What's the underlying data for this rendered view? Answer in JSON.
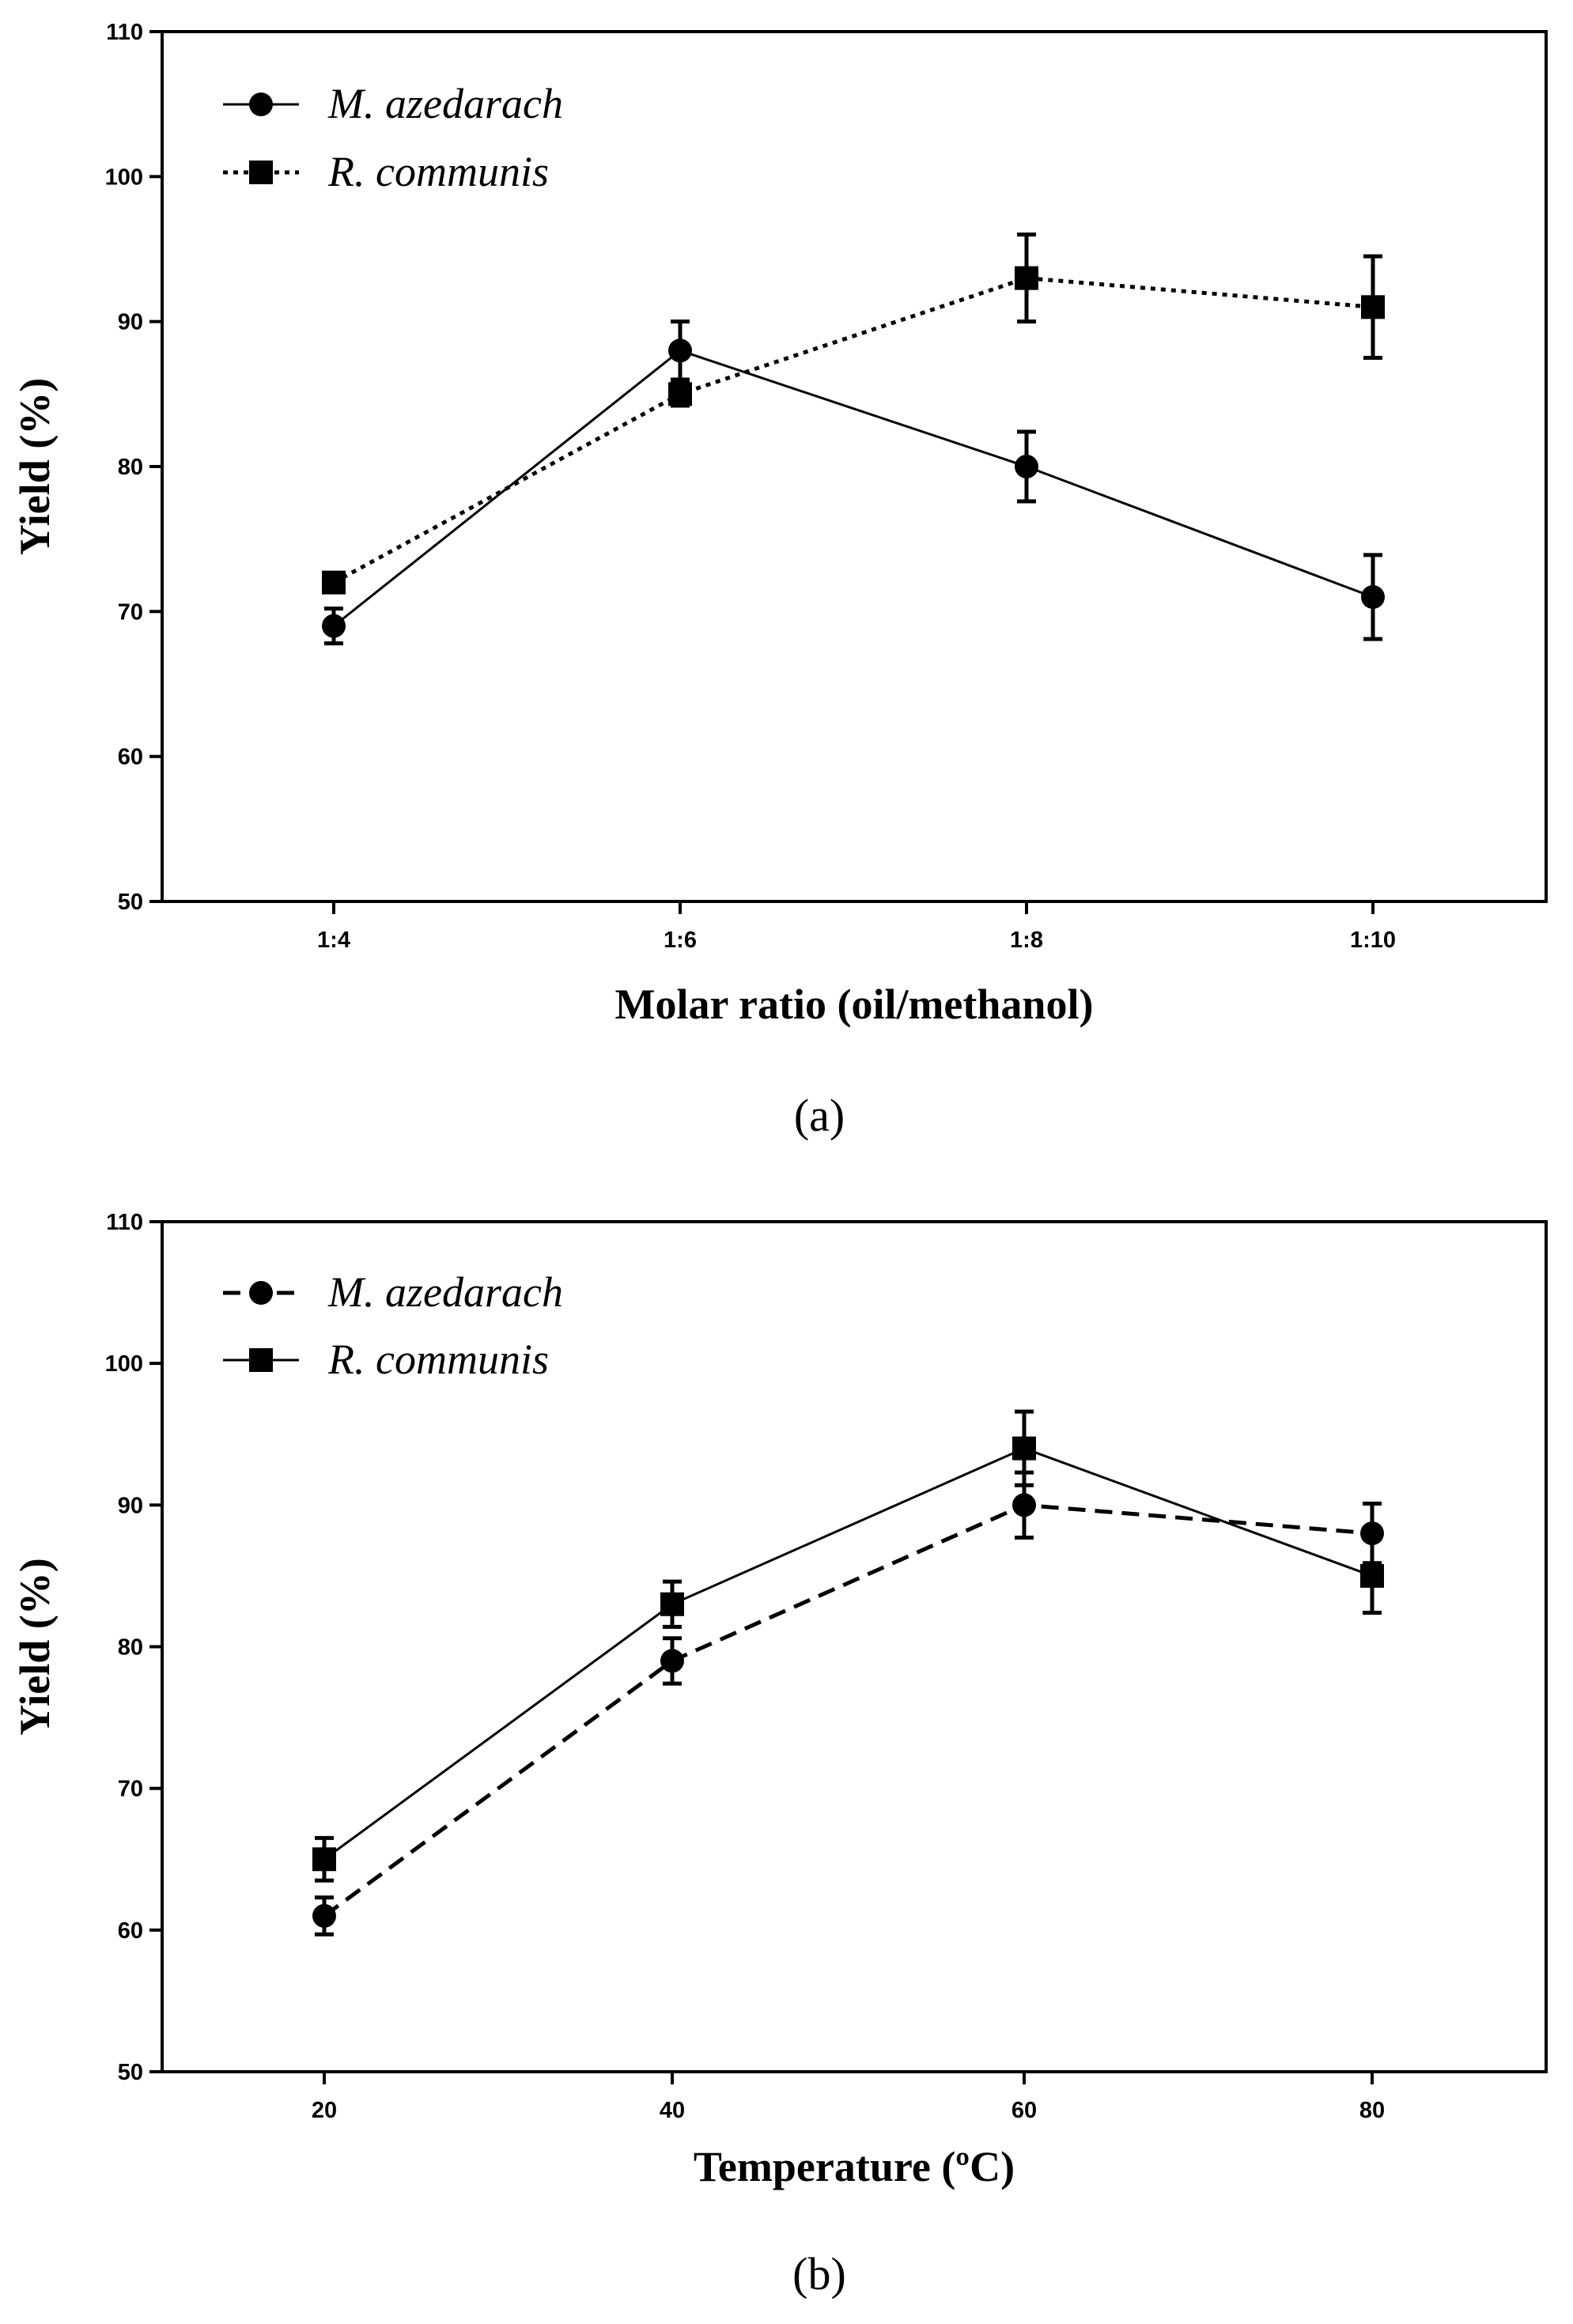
{
  "chart_data": [
    {
      "type": "line",
      "panel_label": "(a)",
      "xlabel": "Molar ratio (oil/methanol)",
      "ylabel": "Yield (%)",
      "categories": [
        "1:4",
        "1:6",
        "1:8",
        "1:10"
      ],
      "ylim": [
        50,
        110
      ],
      "yticks": [
        "50",
        "60",
        "70",
        "80",
        "90",
        "100",
        "110"
      ],
      "legend_position": "top-left",
      "grid": false,
      "series": [
        {
          "name": "M. azedarach",
          "marker": "circle",
          "line_style": "solid",
          "values": [
            69,
            88,
            80,
            71
          ],
          "errors": [
            1.2,
            2.0,
            2.4,
            2.9
          ]
        },
        {
          "name": "R. communis",
          "marker": "square",
          "line_style": "dotted",
          "values": [
            72,
            85,
            93,
            91
          ],
          "errors": [
            0.6,
            0.8,
            3.0,
            3.5
          ]
        }
      ]
    },
    {
      "type": "line",
      "panel_label": "(b)",
      "xlabel": "Temperature (ºC)",
      "ylabel": "Yield (%)",
      "categories": [
        "20",
        "40",
        "60",
        "80"
      ],
      "ylim": [
        50,
        110
      ],
      "yticks": [
        "50",
        "60",
        "70",
        "80",
        "90",
        "100",
        "110"
      ],
      "legend_position": "top-left",
      "grid": false,
      "series": [
        {
          "name": "M. azedarach",
          "marker": "circle",
          "line_style": "dashed",
          "values": [
            61,
            79,
            90,
            88
          ],
          "errors": [
            1.3,
            1.6,
            2.3,
            2.1
          ]
        },
        {
          "name": "R. communis",
          "marker": "square",
          "line_style": "solid",
          "values": [
            65,
            83,
            94,
            85
          ],
          "errors": [
            1.5,
            1.6,
            2.6,
            2.6
          ]
        }
      ]
    }
  ]
}
